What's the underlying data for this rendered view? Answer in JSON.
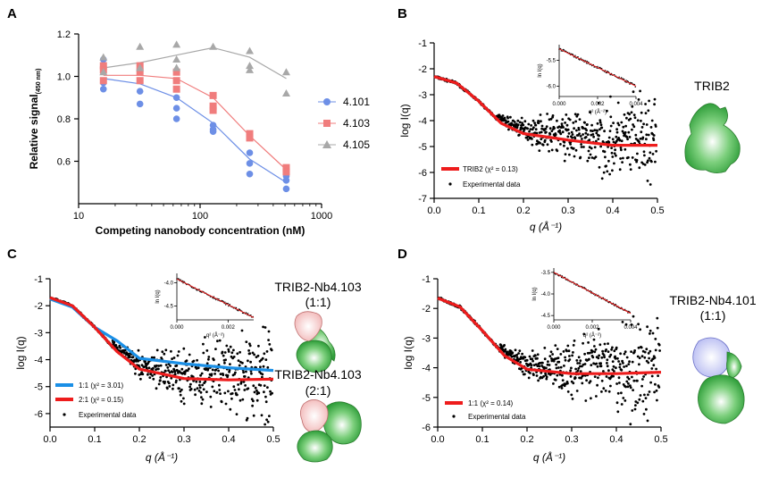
{
  "panel_labels": {
    "a": "A",
    "b": "B",
    "c": "C",
    "d": "D"
  },
  "chart_data": [
    {
      "id": "A",
      "type": "scatter",
      "xscale": "log",
      "xlim": [
        10,
        1000
      ],
      "ylim": [
        0.4,
        1.2
      ],
      "xticks": [
        "10",
        "100",
        "1000"
      ],
      "yticks": [
        "0.6",
        "0.8",
        "1.0",
        "1.2"
      ],
      "xlabel": "Competing nanobody concentration (nM)",
      "ylabel": "Relative signal",
      "ylabel_sub": "(450 nm)",
      "series": [
        {
          "name": "4.101",
          "color": "#6d8fe6",
          "marker": "circle",
          "points": [
            [
              16,
              1.08
            ],
            [
              16,
              0.97
            ],
            [
              16,
              0.94
            ],
            [
              32,
              1.05
            ],
            [
              32,
              0.93
            ],
            [
              32,
              0.87
            ],
            [
              64,
              0.9
            ],
            [
              64,
              0.85
            ],
            [
              64,
              0.8
            ],
            [
              128,
              0.77
            ],
            [
              128,
              0.75
            ],
            [
              128,
              0.74
            ],
            [
              256,
              0.64
            ],
            [
              256,
              0.59
            ],
            [
              256,
              0.54
            ],
            [
              512,
              0.53
            ],
            [
              512,
              0.51
            ],
            [
              512,
              0.47
            ]
          ],
          "fit": [
            [
              16,
              0.99
            ],
            [
              32,
              0.965
            ],
            [
              64,
              0.9
            ],
            [
              128,
              0.78
            ],
            [
              256,
              0.61
            ],
            [
              512,
              0.5
            ]
          ]
        },
        {
          "name": "4.103",
          "color": "#f07d7d",
          "marker": "square",
          "points": [
            [
              16,
              1.05
            ],
            [
              16,
              1.03
            ],
            [
              16,
              0.98
            ],
            [
              32,
              1.05
            ],
            [
              32,
              1.02
            ],
            [
              32,
              0.98
            ],
            [
              64,
              1.02
            ],
            [
              64,
              0.98
            ],
            [
              64,
              0.94
            ],
            [
              128,
              0.91
            ],
            [
              128,
              0.86
            ],
            [
              128,
              0.84
            ],
            [
              256,
              0.73
            ],
            [
              256,
              0.71
            ],
            [
              512,
              0.57
            ],
            [
              512,
              0.55
            ]
          ],
          "fit": [
            [
              16,
              1.005
            ],
            [
              32,
              1.005
            ],
            [
              64,
              0.99
            ],
            [
              128,
              0.9
            ],
            [
              256,
              0.72
            ],
            [
              512,
              0.56
            ]
          ]
        },
        {
          "name": "4.105",
          "color": "#a8a8a8",
          "marker": "triangle",
          "points": [
            [
              16,
              1.09
            ],
            [
              16,
              1.02
            ],
            [
              32,
              1.14
            ],
            [
              32,
              1.04
            ],
            [
              64,
              1.15
            ],
            [
              64,
              1.08
            ],
            [
              64,
              1.04
            ],
            [
              128,
              1.14
            ],
            [
              256,
              1.12
            ],
            [
              256,
              1.05
            ],
            [
              256,
              1.03
            ],
            [
              512,
              1.02
            ],
            [
              512,
              0.92
            ]
          ],
          "fit": [
            [
              16,
              1.04
            ],
            [
              32,
              1.065
            ],
            [
              64,
              1.1
            ],
            [
              128,
              1.135
            ],
            [
              256,
              1.09
            ],
            [
              512,
              0.99
            ]
          ]
        }
      ]
    },
    {
      "id": "B",
      "type": "scatter",
      "xlim": [
        0,
        0.5
      ],
      "ylim": [
        -7,
        -1
      ],
      "xticks": [
        "0.0",
        "0.1",
        "0.2",
        "0.3",
        "0.4",
        "0.5"
      ],
      "yticks": [
        "-7",
        "-6",
        "-5",
        "-4",
        "-3",
        "-2",
        "-1"
      ],
      "xlabel": "q (Å⁻¹)",
      "ylabel": "log I(q)",
      "fits": [
        {
          "label": "TRIB2 (χ² = 0.13)",
          "color": "#ee1c1c",
          "points": [
            [
              0,
              -2.3
            ],
            [
              0.05,
              -2.55
            ],
            [
              0.1,
              -3.25
            ],
            [
              0.15,
              -4.1
            ],
            [
              0.2,
              -4.5
            ],
            [
              0.3,
              -4.75
            ],
            [
              0.4,
              -4.95
            ],
            [
              0.5,
              -4.95
            ]
          ]
        }
      ],
      "experimental_label": "Experimental data",
      "inset": {
        "xlim": [
          0,
          0.004
        ],
        "ylim": [
          -6.2,
          -5.2
        ],
        "xticks": [
          "0.000",
          "0.002",
          "0.004"
        ],
        "yticks": [
          "-5.5",
          "-6.0"
        ],
        "xlabel": "q² (Å⁻²)",
        "ylabel": "ln I(q)",
        "fit": [
          [
            0,
            -5.28
          ],
          [
            0.004,
            -6.0
          ]
        ]
      }
    },
    {
      "id": "C",
      "type": "scatter",
      "xlim": [
        0,
        0.5
      ],
      "ylim": [
        -6.5,
        -1
      ],
      "xticks": [
        "0.0",
        "0.1",
        "0.2",
        "0.3",
        "0.4",
        "0.5"
      ],
      "yticks": [
        "-6",
        "-5",
        "-4",
        "-3",
        "-2",
        "-1"
      ],
      "xlabel": "q (Å⁻¹)",
      "ylabel": "log I(q)",
      "fits": [
        {
          "label": "1:1 (χ² = 3.01)",
          "color": "#1a8fe6",
          "points": [
            [
              0,
              -1.75
            ],
            [
              0.05,
              -2.05
            ],
            [
              0.1,
              -2.8
            ],
            [
              0.15,
              -3.3
            ],
            [
              0.2,
              -3.95
            ],
            [
              0.3,
              -4.15
            ],
            [
              0.4,
              -4.3
            ],
            [
              0.5,
              -4.4
            ]
          ]
        },
        {
          "label": "2:1 (χ² = 0.15)",
          "color": "#ee1c1c",
          "points": [
            [
              0,
              -1.7
            ],
            [
              0.05,
              -2.0
            ],
            [
              0.1,
              -2.8
            ],
            [
              0.15,
              -3.7
            ],
            [
              0.2,
              -4.35
            ],
            [
              0.3,
              -4.7
            ],
            [
              0.4,
              -4.75
            ],
            [
              0.5,
              -4.72
            ]
          ]
        }
      ],
      "experimental_label": "Experimental data",
      "inset": {
        "xlim": [
          0,
          0.003
        ],
        "ylim": [
          -4.8,
          -3.8
        ],
        "xticks": [
          "0.000",
          "0.002"
        ],
        "yticks": [
          "-4.0",
          "-4.5"
        ],
        "xlabel": "q² (Å⁻²)",
        "ylabel": "ln I(q)",
        "fit": [
          [
            0,
            -3.92
          ],
          [
            0.003,
            -4.75
          ]
        ]
      }
    },
    {
      "id": "D",
      "type": "scatter",
      "xlim": [
        0,
        0.5
      ],
      "ylim": [
        -6,
        -1
      ],
      "xticks": [
        "0.0",
        "0.1",
        "0.2",
        "0.3",
        "0.4",
        "0.5"
      ],
      "yticks": [
        "-6",
        "-5",
        "-4",
        "-3",
        "-2",
        "-1"
      ],
      "xlabel": "q (Å⁻¹)",
      "ylabel": "log I(q)",
      "fits": [
        {
          "label": "1:1 (χ² = 0.14)",
          "color": "#ee1c1c",
          "points": [
            [
              0,
              -1.65
            ],
            [
              0.05,
              -1.95
            ],
            [
              0.1,
              -2.75
            ],
            [
              0.15,
              -3.6
            ],
            [
              0.2,
              -4.05
            ],
            [
              0.3,
              -4.2
            ],
            [
              0.4,
              -4.2
            ],
            [
              0.5,
              -4.15
            ]
          ]
        }
      ],
      "experimental_label": "Experimental data",
      "inset": {
        "xlim": [
          0,
          0.004
        ],
        "ylim": [
          -4.6,
          -3.4
        ],
        "xticks": [
          "0.000",
          "0.002",
          "0.004"
        ],
        "yticks": [
          "-3.5",
          "-4.0",
          "-4.5"
        ],
        "xlabel": "q² (Å⁻²)",
        "ylabel": "ln I(q)",
        "fit": [
          [
            0,
            -3.5
          ],
          [
            0.004,
            -4.45
          ]
        ]
      }
    }
  ],
  "molecules": {
    "trib2": "TRIB2",
    "c_1to1_name": "TRIB2-Nb4.103",
    "c_1to1_ratio": "(1:1)",
    "c_2to1_name": "TRIB2-Nb4.103",
    "c_2to1_ratio": "(2:1)",
    "d_name": "TRIB2-Nb4.101",
    "d_ratio": "(1:1)"
  },
  "colors": {
    "nb4101": "#c9cdf4",
    "nb4103": "#f4c6c6",
    "trib2": "#2f9e3a"
  }
}
